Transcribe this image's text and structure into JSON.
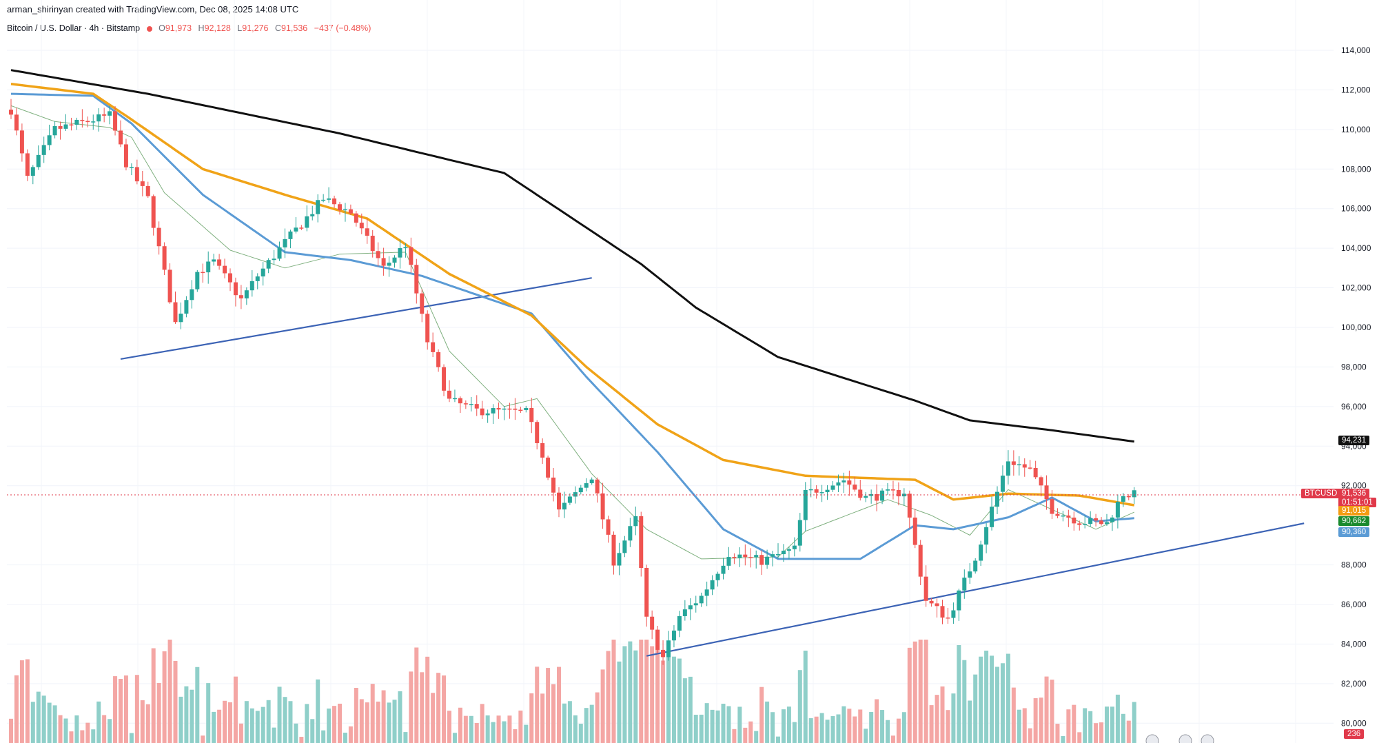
{
  "header": {
    "credit": "arman_shirinyan created with TradingView.com, Dec 08, 2025 14:08 UTC",
    "symbol": "Bitcoin / U.S. Dollar · 4h · Bitstamp",
    "open_label": "O",
    "open": "91,973",
    "high_label": "H",
    "high": "92,128",
    "low_label": "L",
    "low": "91,276",
    "close_label": "C",
    "close": "91,536",
    "change": "−437 (−0.48%)"
  },
  "colors": {
    "up": "#26a69a",
    "down": "#ef5350",
    "vol_up": "#8fcfc9",
    "vol_down": "#f4a6a4",
    "ma_black": "#111111",
    "ma_orange": "#f0a318",
    "ma_blue": "#5b9bd5",
    "ma_thin": "#7fb07f",
    "trendline": "#3c63b5",
    "last_tag": "#e0394a",
    "label_orange": "#f39c12",
    "label_green": "#1a8a2e",
    "label_blue": "#5b9bd5",
    "label_black": "#111111"
  },
  "price_labels": {
    "ma_black": "94,231",
    "ticker": "BTCUSD",
    "last_price": "91,536",
    "countdown": "01:51:01",
    "ma_orange": "91,015",
    "ma_green": "90,662",
    "ma_blue": "90,360",
    "volume": "236"
  },
  "chart_data": {
    "type": "candlestick",
    "title": "Bitcoin / U.S. Dollar · 4h · Bitstamp",
    "ylim": [
      79000,
      114800
    ],
    "y_ticks": [
      "114,000",
      "112,000",
      "110,000",
      "108,000",
      "106,000",
      "104,000",
      "102,000",
      "100,000",
      "98,000",
      "96,000",
      "94,000",
      "92,000",
      "88,000",
      "86,000",
      "84,000",
      "82,000",
      "80,000"
    ],
    "y_tick_values": [
      114000,
      112000,
      110000,
      108000,
      106000,
      104000,
      102000,
      100000,
      98000,
      96000,
      94000,
      92000,
      88000,
      86000,
      84000,
      82000,
      80000
    ],
    "bars": 210,
    "key_closes": [
      [
        0,
        111000
      ],
      [
        3,
        107500
      ],
      [
        8,
        110000
      ],
      [
        18,
        110700
      ],
      [
        21,
        108300
      ],
      [
        25,
        106500
      ],
      [
        30,
        100200
      ],
      [
        34,
        102800
      ],
      [
        37,
        103300
      ],
      [
        42,
        101400
      ],
      [
        45,
        102600
      ],
      [
        50,
        104300
      ],
      [
        57,
        106500
      ],
      [
        62,
        105800
      ],
      [
        68,
        103000
      ],
      [
        72,
        104200
      ],
      [
        74,
        101700
      ],
      [
        76,
        99300
      ],
      [
        80,
        96300
      ],
      [
        85,
        95800
      ],
      [
        94,
        95700
      ],
      [
        97,
        93600
      ],
      [
        100,
        90700
      ],
      [
        106,
        92500
      ],
      [
        110,
        88200
      ],
      [
        114,
        90300
      ],
      [
        116,
        85200
      ],
      [
        119,
        83300
      ],
      [
        122,
        85400
      ],
      [
        126,
        86400
      ],
      [
        131,
        88600
      ],
      [
        137,
        88200
      ],
      [
        143,
        88800
      ],
      [
        145,
        91600
      ],
      [
        152,
        92300
      ],
      [
        156,
        91400
      ],
      [
        163,
        91700
      ],
      [
        167,
        86200
      ],
      [
        171,
        85300
      ],
      [
        176,
        88400
      ],
      [
        182,
        93300
      ],
      [
        186,
        92800
      ],
      [
        190,
        90800
      ],
      [
        195,
        90200
      ],
      [
        200,
        90100
      ],
      [
        203,
        91600
      ],
      [
        205,
        91536
      ]
    ],
    "ma_black": [
      [
        0,
        113000
      ],
      [
        25,
        111800
      ],
      [
        60,
        109800
      ],
      [
        90,
        107800
      ],
      [
        115,
        103200
      ],
      [
        125,
        101000
      ],
      [
        140,
        98500
      ],
      [
        165,
        96300
      ],
      [
        175,
        95300
      ],
      [
        190,
        94800
      ],
      [
        205,
        94231
      ]
    ],
    "ma_orange": [
      [
        0,
        112300
      ],
      [
        15,
        111800
      ],
      [
        22,
        110500
      ],
      [
        35,
        108000
      ],
      [
        50,
        106700
      ],
      [
        65,
        105500
      ],
      [
        80,
        102700
      ],
      [
        95,
        100600
      ],
      [
        105,
        98000
      ],
      [
        118,
        95100
      ],
      [
        130,
        93300
      ],
      [
        145,
        92500
      ],
      [
        165,
        92300
      ],
      [
        172,
        91300
      ],
      [
        182,
        91600
      ],
      [
        195,
        91500
      ],
      [
        205,
        91015
      ]
    ],
    "ma_blue": [
      [
        0,
        111800
      ],
      [
        15,
        111700
      ],
      [
        22,
        110300
      ],
      [
        35,
        106700
      ],
      [
        50,
        103800
      ],
      [
        62,
        103400
      ],
      [
        75,
        102600
      ],
      [
        95,
        100700
      ],
      [
        105,
        97500
      ],
      [
        118,
        93700
      ],
      [
        130,
        89800
      ],
      [
        140,
        88300
      ],
      [
        155,
        88300
      ],
      [
        165,
        90000
      ],
      [
        172,
        89800
      ],
      [
        182,
        90400
      ],
      [
        190,
        91400
      ],
      [
        198,
        90200
      ],
      [
        205,
        90360
      ]
    ],
    "ma_thin": [
      [
        0,
        111200
      ],
      [
        8,
        110400
      ],
      [
        18,
        110100
      ],
      [
        22,
        109600
      ],
      [
        28,
        106800
      ],
      [
        40,
        103900
      ],
      [
        50,
        103000
      ],
      [
        60,
        103700
      ],
      [
        72,
        103800
      ],
      [
        80,
        98800
      ],
      [
        90,
        96000
      ],
      [
        96,
        96400
      ],
      [
        106,
        92600
      ],
      [
        116,
        89800
      ],
      [
        126,
        88300
      ],
      [
        140,
        88400
      ],
      [
        145,
        89700
      ],
      [
        160,
        91300
      ],
      [
        168,
        90500
      ],
      [
        175,
        89500
      ],
      [
        182,
        91800
      ],
      [
        190,
        90800
      ],
      [
        198,
        89800
      ],
      [
        205,
        90662
      ]
    ],
    "trendlines": [
      {
        "x1_bar": 20,
        "y1": 98400,
        "x2_bar": 106,
        "y2": 102500
      },
      {
        "x1_bar": 116,
        "y1": 83400,
        "x2_bar": 236,
        "y2": 90100
      }
    ]
  }
}
